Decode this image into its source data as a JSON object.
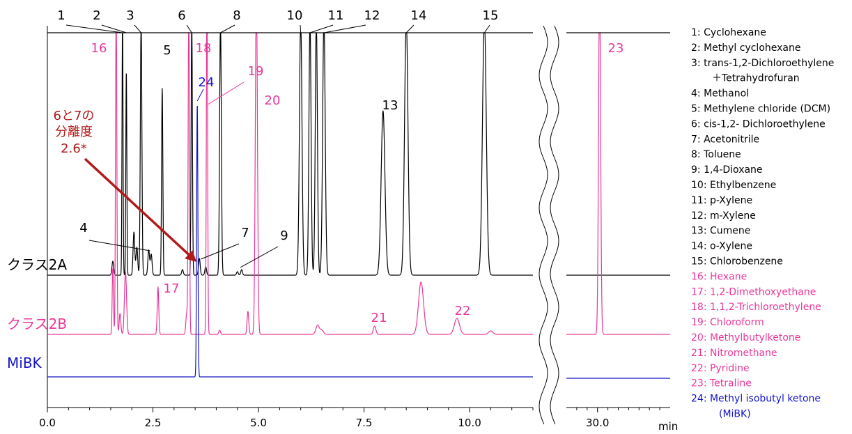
{
  "chart_data": {
    "type": "line",
    "title": "",
    "xlabel": "min",
    "ylabel": "",
    "x_ticks_left": [
      "0.0",
      "2.5",
      "5.0",
      "7.5",
      "10.0"
    ],
    "x_ticks_right": [
      "30.0"
    ],
    "xlim_left": [
      0,
      11.5
    ],
    "xlim_right": [
      28.5,
      33.5
    ],
    "colors": {
      "class2A": "#000000",
      "class2B": "#e8389a",
      "mibk": "#1414c8",
      "annotation": "#b11a1a"
    },
    "series": [
      {
        "name": "クラス2A",
        "color": "#000000",
        "peaks": [
          {
            "label": "1",
            "rt": 1.78
          },
          {
            "label": "2",
            "rt": 1.87
          },
          {
            "label": "3",
            "rt": 2.22
          },
          {
            "label": "4",
            "rt": 2.4
          },
          {
            "label": "5",
            "rt": 2.72
          },
          {
            "label": "6",
            "rt": 3.42
          },
          {
            "label": "7",
            "rt": 3.6
          },
          {
            "label": "8",
            "rt": 4.1
          },
          {
            "label": "9",
            "rt": 4.6
          },
          {
            "label": "10",
            "rt": 6.0
          },
          {
            "label": "11",
            "rt": 6.3
          },
          {
            "label": "12",
            "rt": 6.55
          },
          {
            "label": "13",
            "rt": 7.95
          },
          {
            "label": "14",
            "rt": 8.5
          },
          {
            "label": "15",
            "rt": 10.35
          }
        ]
      },
      {
        "name": "クラス2B",
        "color": "#e8389a",
        "peaks": [
          {
            "label": "16",
            "rt": 1.63
          },
          {
            "label": "17",
            "rt": 2.62
          },
          {
            "label": "18",
            "rt": 3.35
          },
          {
            "label": "19",
            "rt": 3.78
          },
          {
            "label": "20",
            "rt": 4.95
          },
          {
            "label": "21",
            "rt": 7.75
          },
          {
            "label": "22",
            "rt": 9.7
          },
          {
            "label": "23",
            "rt": 30.1
          }
        ]
      },
      {
        "name": "MiBK",
        "color": "#1414c8",
        "peaks": [
          {
            "label": "24",
            "rt": 3.55
          }
        ]
      }
    ],
    "annotation": {
      "lines": [
        "6と7の",
        "分離度",
        "2.6*"
      ],
      "color": "#b11a1a"
    },
    "legend": [
      {
        "text": "1: Cyclohexane",
        "color": "#000000"
      },
      {
        "text": "2: Methyl cyclohexane",
        "color": "#000000"
      },
      {
        "text": "3: trans-1,2-Dichloroethylene",
        "color": "#000000"
      },
      {
        "text": "＋Tetrahydrofuran",
        "color": "#000000",
        "indent": true
      },
      {
        "text": "4: Methanol",
        "color": "#000000"
      },
      {
        "text": "5: Methylene chloride (DCM)",
        "color": "#000000"
      },
      {
        "text": "6: cis-1,2- Dichloroethylene",
        "color": "#000000"
      },
      {
        "text": "7: Acetonitrile",
        "color": "#000000"
      },
      {
        "text": "8: Toluene",
        "color": "#000000"
      },
      {
        "text": "9: 1,4-Dioxane",
        "color": "#000000"
      },
      {
        "text": "10: Ethylbenzene",
        "color": "#000000"
      },
      {
        "text": "11: p-Xylene",
        "color": "#000000"
      },
      {
        "text": "12: m-Xylene",
        "color": "#000000"
      },
      {
        "text": "13: Cumene",
        "color": "#000000"
      },
      {
        "text": "14: o-Xylene",
        "color": "#000000"
      },
      {
        "text": "15: Chlorobenzene",
        "color": "#000000"
      },
      {
        "text": "16: Hexane",
        "color": "#e8389a"
      },
      {
        "text": "17: 1,2-Dimethoxyethane",
        "color": "#e8389a"
      },
      {
        "text": "18: 1,1,2-Trichloroethylene",
        "color": "#e8389a"
      },
      {
        "text": "19: Chloroform",
        "color": "#e8389a"
      },
      {
        "text": "20: Methylbutylketone",
        "color": "#e8389a"
      },
      {
        "text": "21: Nitromethane",
        "color": "#e8389a"
      },
      {
        "text": "22: Pyridine",
        "color": "#e8389a"
      },
      {
        "text": "23: Tetraline",
        "color": "#e8389a"
      },
      {
        "text": "24: Methyl isobutyl ketone",
        "color": "#1414c8"
      },
      {
        "text": "(MiBK)",
        "color": "#1414c8",
        "indent": true
      }
    ]
  }
}
